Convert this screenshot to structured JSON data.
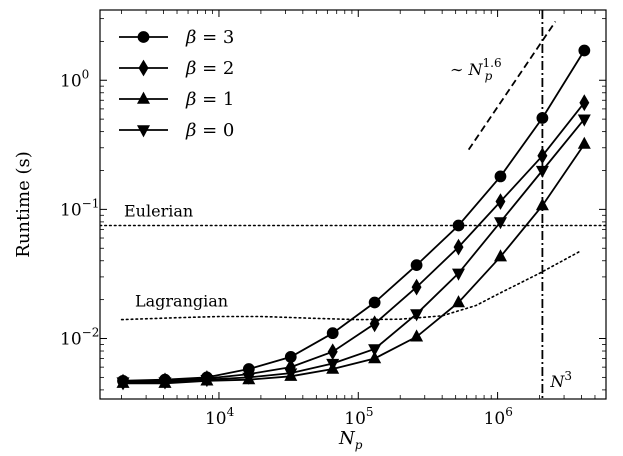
{
  "chart_data": {
    "type": "line",
    "xscale": "log",
    "yscale": "log",
    "xlim": [
      1400,
      6000000
    ],
    "ylim": [
      0.0034,
      3.5
    ],
    "xlabel": {
      "base": "N",
      "sub": "p"
    },
    "ylabel": "Runtime (s)",
    "x_ticks": [
      {
        "value": 10000,
        "base": "10",
        "exp": "4"
      },
      {
        "value": 100000,
        "base": "10",
        "exp": "5"
      },
      {
        "value": 1000000,
        "base": "10",
        "exp": "6"
      }
    ],
    "y_ticks": [
      {
        "value": 0.01,
        "base": "10",
        "exp": "−2"
      },
      {
        "value": 0.1,
        "base": "10",
        "exp": "−1"
      },
      {
        "value": 1,
        "base": "10",
        "exp": "0"
      }
    ],
    "grid": false,
    "legend_position": "top-left",
    "series": [
      {
        "name": "β = 3",
        "beta": "3",
        "marker": "circle",
        "x": [
          2048,
          4096,
          8192,
          16384,
          32768,
          65536,
          131072,
          262144,
          524288,
          1048576,
          2097152,
          4194304
        ],
        "y": [
          0.0047,
          0.0048,
          0.005,
          0.0058,
          0.0072,
          0.011,
          0.019,
          0.037,
          0.075,
          0.18,
          0.51,
          1.7
        ]
      },
      {
        "name": "β = 2",
        "beta": "2",
        "marker": "diamond",
        "x": [
          2048,
          4096,
          8192,
          16384,
          32768,
          65536,
          131072,
          262144,
          524288,
          1048576,
          2097152,
          4194304
        ],
        "y": [
          0.0046,
          0.0047,
          0.0049,
          0.0053,
          0.006,
          0.0079,
          0.013,
          0.025,
          0.051,
          0.115,
          0.26,
          0.67
        ]
      },
      {
        "name": "β = 1",
        "beta": "1",
        "marker": "triangle-up",
        "x": [
          2048,
          4096,
          8192,
          16384,
          32768,
          65536,
          131072,
          262144,
          524288,
          1048576,
          2097152,
          4194304
        ],
        "y": [
          0.0045,
          0.0045,
          0.0047,
          0.0048,
          0.0051,
          0.0058,
          0.007,
          0.0103,
          0.019,
          0.043,
          0.107,
          0.32
        ]
      },
      {
        "name": "β = 0",
        "beta": "0",
        "marker": "triangle-down",
        "x": [
          2048,
          4096,
          8192,
          16384,
          32768,
          65536,
          131072,
          262144,
          524288,
          1048576,
          2097152,
          4194304
        ],
        "y": [
          0.0046,
          0.0046,
          0.0048,
          0.005,
          0.0054,
          0.0064,
          0.0083,
          0.0155,
          0.032,
          0.08,
          0.2,
          0.5
        ]
      }
    ],
    "reference_lines": {
      "eulerian": {
        "label": "Eulerian",
        "y": 0.075,
        "style": "dotted"
      },
      "lagrangian": {
        "label": "Lagrangian",
        "style": "dotted",
        "x": [
          2000,
          5000,
          10000,
          20000,
          30000,
          50000,
          100000,
          200000,
          400000,
          700000,
          1000000,
          2000000,
          4000000
        ],
        "y": [
          0.014,
          0.0145,
          0.0148,
          0.0148,
          0.0146,
          0.0143,
          0.014,
          0.0141,
          0.015,
          0.018,
          0.022,
          0.032,
          0.048
        ]
      },
      "n3": {
        "label_base": "N",
        "label_exp": "3",
        "x": 2097152,
        "style": "dashdot"
      },
      "scaling": {
        "label_prefix": "∼ N",
        "label_sub": "p",
        "label_exp": "1.6",
        "style": "dashed",
        "x": [
          620000,
          2600000
        ],
        "y": [
          0.29,
          2.85
        ]
      }
    }
  }
}
